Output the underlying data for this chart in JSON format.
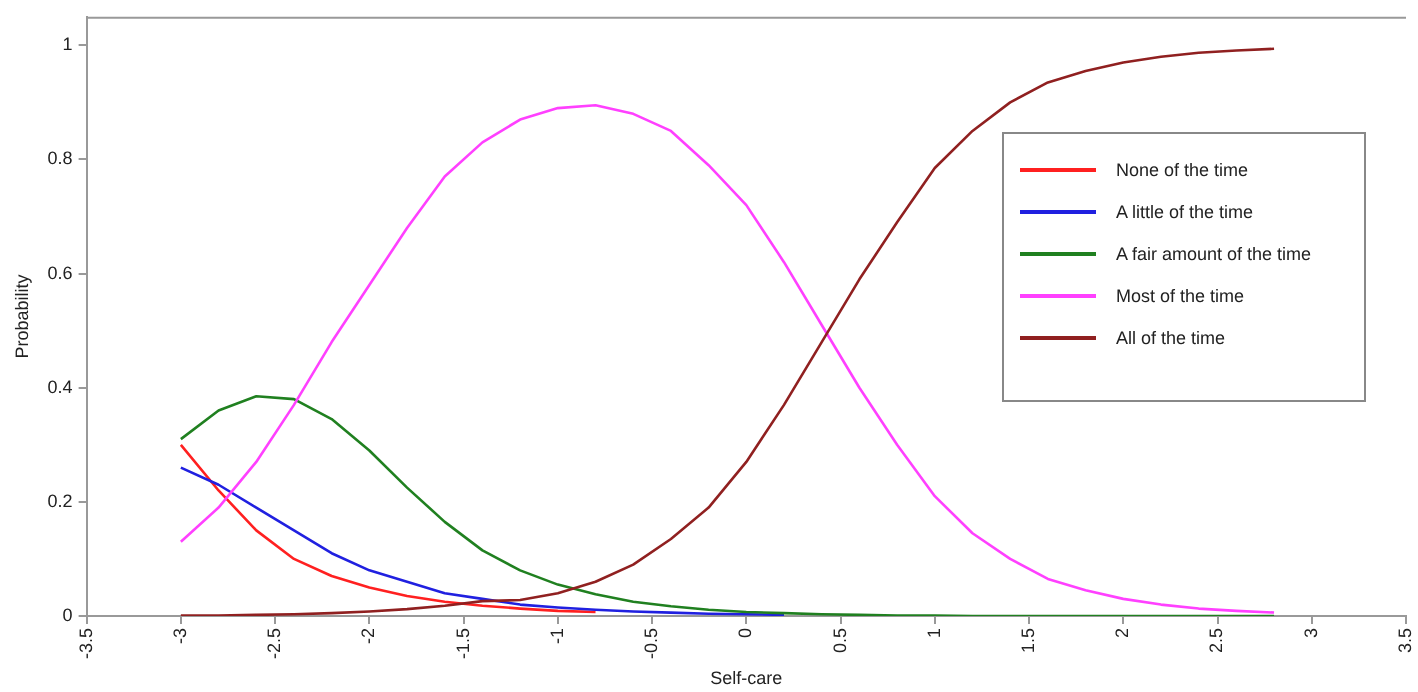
{
  "chart_data": {
    "type": "line",
    "xlabel": "Self-care",
    "ylabel": "Probability",
    "x": [
      -3,
      -2.8,
      -2.6,
      -2.4,
      -2.2,
      -2,
      -1.8,
      -1.6,
      -1.4,
      -1.2,
      -1,
      -0.8,
      -0.6,
      -0.4,
      -0.2,
      0,
      0.2,
      0.4,
      0.6,
      0.8,
      1,
      1.2,
      1.4,
      1.6,
      1.8,
      2,
      2.2,
      2.4,
      2.6,
      2.8
    ],
    "series": [
      {
        "name": "None of the time",
        "color": "#ff2020",
        "values": [
          0.3,
          0.22,
          0.15,
          0.1,
          0.07,
          0.05,
          0.035,
          0.025,
          0.018,
          0.013,
          0.009,
          0.007,
          null,
          null,
          null,
          null,
          null,
          null,
          null,
          null,
          null,
          null,
          null,
          null,
          null,
          null,
          null,
          null,
          null,
          null
        ]
      },
      {
        "name": "A little of the time",
        "color": "#2020e0",
        "values": [
          0.26,
          0.23,
          0.19,
          0.15,
          0.11,
          0.08,
          0.06,
          0.04,
          0.03,
          0.02,
          0.015,
          0.011,
          0.008,
          0.006,
          0.004,
          0.003,
          0.002,
          null,
          null,
          null,
          null,
          null,
          null,
          null,
          null,
          null,
          null,
          null,
          null,
          null
        ]
      },
      {
        "name": "A fair amount of the time",
        "color": "#208020",
        "values": [
          0.31,
          0.36,
          0.385,
          0.38,
          0.345,
          0.29,
          0.225,
          0.165,
          0.115,
          0.08,
          0.055,
          0.038,
          0.025,
          0.017,
          0.011,
          0.007,
          0.005,
          0.003,
          0.002,
          0.001,
          0.001,
          0,
          0,
          0,
          0,
          0,
          0,
          0,
          0,
          0
        ]
      },
      {
        "name": "Most of the time",
        "color": "#ff40ff",
        "values": [
          0.13,
          0.19,
          0.27,
          0.37,
          0.48,
          0.58,
          0.68,
          0.77,
          0.83,
          0.87,
          0.89,
          0.895,
          0.88,
          0.85,
          0.79,
          0.72,
          0.62,
          0.51,
          0.4,
          0.3,
          0.21,
          0.145,
          0.1,
          0.065,
          0.045,
          0.03,
          0.02,
          0.013,
          0.009,
          0.006
        ]
      },
      {
        "name": "All of the time",
        "color": "#902020",
        "values": [
          0.001,
          0.001,
          0.002,
          0.003,
          0.005,
          0.008,
          0.012,
          0.018,
          0.026,
          0.028,
          0.04,
          0.06,
          0.09,
          0.135,
          0.19,
          0.27,
          0.37,
          0.48,
          0.59,
          0.69,
          0.785,
          0.85,
          0.9,
          0.935,
          0.955,
          0.97,
          0.98,
          0.987,
          0.991,
          0.994
        ]
      }
    ],
    "xlim": [
      -3.5,
      3.5
    ],
    "xticks": [
      -3.5,
      -3,
      -2.5,
      -2,
      -1.5,
      -1,
      -0.5,
      0,
      0.5,
      1,
      1.5,
      2,
      2.5,
      3,
      3.5
    ],
    "ylim": [
      0,
      1.05
    ],
    "yticks": [
      0,
      0.2,
      0.4,
      0.6,
      0.8,
      1
    ],
    "grid": false,
    "legend": "right",
    "marker": "none",
    "line_style": "solid"
  }
}
